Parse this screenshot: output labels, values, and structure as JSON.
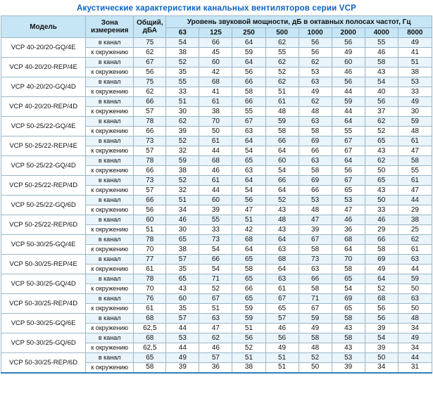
{
  "title": "Акустические характеристики канальных вентиляторов  серии VCP",
  "table": {
    "headers": {
      "model": "Модель",
      "zone": "Зона\nизмерения",
      "total": "Общий,\nдБА",
      "spl_group": "Уровень звуковой мощности, дБ в октавных полосах частот, Гц",
      "frequencies": [
        "63",
        "125",
        "250",
        "500",
        "1000",
        "2000",
        "4000",
        "8000"
      ]
    },
    "zone_labels": {
      "duct": "в канал",
      "ambient": "к окружению"
    },
    "rows": [
      {
        "model": "VCP 40-20/20-GQ/4E",
        "duct": {
          "total": "75",
          "levels": [
            54,
            66,
            64,
            62,
            56,
            56,
            55,
            49
          ]
        },
        "ambient": {
          "total": "62",
          "levels": [
            38,
            45,
            59,
            55,
            56,
            49,
            46,
            41
          ]
        }
      },
      {
        "model": "VCP 40-20/20-REP/4E",
        "duct": {
          "total": "67",
          "levels": [
            52,
            60,
            64,
            62,
            62,
            60,
            58,
            51
          ]
        },
        "ambient": {
          "total": "56",
          "levels": [
            35,
            42,
            56,
            52,
            53,
            46,
            43,
            38
          ]
        }
      },
      {
        "model": "VCP 40-20/20-GQ/4D",
        "duct": {
          "total": "75",
          "levels": [
            55,
            68,
            66,
            62,
            63,
            56,
            54,
            53
          ]
        },
        "ambient": {
          "total": "62",
          "levels": [
            33,
            41,
            58,
            51,
            49,
            44,
            40,
            33
          ]
        }
      },
      {
        "model": "VCP 40-20/20-REP/4D",
        "duct": {
          "total": "66",
          "levels": [
            51,
            61,
            66,
            61,
            62,
            59,
            56,
            49
          ]
        },
        "ambient": {
          "total": "57",
          "levels": [
            30,
            38,
            55,
            48,
            48,
            44,
            37,
            30
          ]
        }
      },
      {
        "model": "VCP 50-25/22-GQ/4E",
        "duct": {
          "total": "78",
          "levels": [
            62,
            70,
            67,
            59,
            63,
            64,
            62,
            59
          ]
        },
        "ambient": {
          "total": "66",
          "levels": [
            39,
            50,
            63,
            58,
            58,
            55,
            52,
            48
          ]
        }
      },
      {
        "model": "VCP 50-25/22-REP/4E",
        "duct": {
          "total": "73",
          "levels": [
            52,
            61,
            64,
            66,
            69,
            67,
            65,
            61
          ]
        },
        "ambient": {
          "total": "57",
          "levels": [
            32,
            44,
            54,
            64,
            66,
            67,
            43,
            47
          ]
        }
      },
      {
        "model": "VCP 50-25/22-GQ/4D",
        "duct": {
          "total": "78",
          "levels": [
            59,
            68,
            65,
            60,
            63,
            64,
            62,
            58
          ]
        },
        "ambient": {
          "total": "66",
          "levels": [
            38,
            46,
            63,
            54,
            58,
            56,
            50,
            55
          ]
        }
      },
      {
        "model": "VCP 50-25/22-REP/4D",
        "duct": {
          "total": "73",
          "levels": [
            52,
            61,
            64,
            66,
            69,
            67,
            65,
            61
          ]
        },
        "ambient": {
          "total": "57",
          "levels": [
            32,
            44,
            54,
            64,
            66,
            65,
            43,
            47
          ]
        }
      },
      {
        "model": "VCP 50-25/22-GQ/6D",
        "duct": {
          "total": "66",
          "levels": [
            51,
            60,
            56,
            52,
            53,
            53,
            50,
            44
          ]
        },
        "ambient": {
          "total": "56",
          "levels": [
            34,
            39,
            47,
            43,
            48,
            47,
            33,
            29
          ]
        }
      },
      {
        "model": "VCP 50-25/22-REP/6D",
        "duct": {
          "total": "60",
          "levels": [
            46,
            55,
            51,
            48,
            47,
            46,
            46,
            38
          ]
        },
        "ambient": {
          "total": "51",
          "levels": [
            30,
            33,
            42,
            43,
            39,
            36,
            29,
            25
          ]
        }
      },
      {
        "model": "VCP 50-30/25-GQ/4E",
        "duct": {
          "total": "78",
          "levels": [
            65,
            73,
            68,
            64,
            67,
            68,
            66,
            62
          ]
        },
        "ambient": {
          "total": "70",
          "levels": [
            38,
            54,
            64,
            63,
            58,
            64,
            58,
            61
          ]
        }
      },
      {
        "model": "VCP 50-30/25-REP/4E",
        "duct": {
          "total": "77",
          "levels": [
            57,
            66,
            65,
            68,
            73,
            70,
            69,
            63
          ]
        },
        "ambient": {
          "total": "61",
          "levels": [
            35,
            54,
            58,
            64,
            63,
            58,
            49,
            44
          ]
        }
      },
      {
        "model": "VCP 50-30/25-GQ/4D",
        "duct": {
          "total": "78",
          "levels": [
            65,
            71,
            65,
            63,
            66,
            65,
            64,
            59
          ]
        },
        "ambient": {
          "total": "70",
          "levels": [
            43,
            52,
            66,
            61,
            58,
            54,
            52,
            50
          ]
        }
      },
      {
        "model": "VCP 50-30/25-REP/4D",
        "duct": {
          "total": "76",
          "levels": [
            60,
            67,
            65,
            67,
            71,
            69,
            68,
            63
          ]
        },
        "ambient": {
          "total": "61",
          "levels": [
            35,
            51,
            59,
            65,
            67,
            65,
            56,
            50
          ]
        }
      },
      {
        "model": "VCP 50-30/25-GQ/6E",
        "duct": {
          "total": "68",
          "levels": [
            57,
            63,
            59,
            57,
            59,
            58,
            56,
            48
          ]
        },
        "ambient": {
          "total": "62,5",
          "levels": [
            44,
            47,
            51,
            46,
            49,
            43,
            39,
            34
          ]
        }
      },
      {
        "model": "VCP 50-30/25-GQ/6D",
        "duct": {
          "total": "68",
          "levels": [
            53,
            62,
            56,
            56,
            58,
            58,
            54,
            49
          ]
        },
        "ambient": {
          "total": "62,5",
          "levels": [
            44,
            46,
            52,
            49,
            48,
            43,
            39,
            34
          ]
        }
      },
      {
        "model": "VCP 50-30/25-REP/6D",
        "duct": {
          "total": "65",
          "levels": [
            49,
            57,
            51,
            51,
            52,
            53,
            50,
            44
          ]
        },
        "ambient": {
          "total": "58",
          "levels": [
            39,
            36,
            38,
            51,
            50,
            39,
            34,
            31
          ]
        }
      }
    ]
  }
}
